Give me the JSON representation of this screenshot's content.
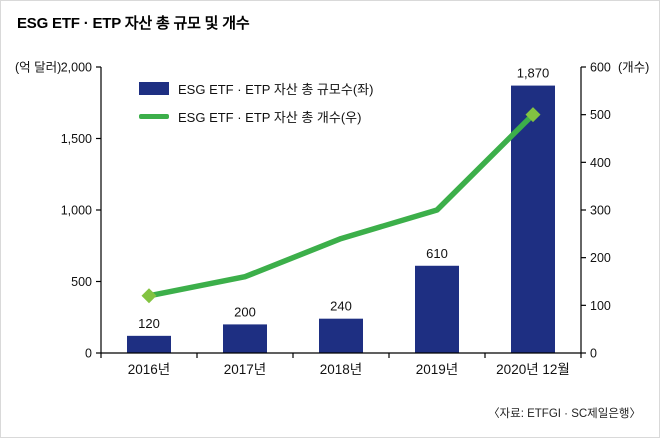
{
  "page": {
    "title": "ESG ETF · ETP 자산 총 규모 및 개수",
    "source_note": "〈자료: ETFGI · SC제일은행〉"
  },
  "legend": {
    "bars_label": "ESG ETF · ETP 자산 총 규모수(좌)",
    "line_label": "ESG ETF · ETP 자산 총 개수(우)"
  },
  "colors": {
    "bar": "#1E2F82",
    "line": "#3CAF4A",
    "marker": "#82C341",
    "axis": "#000000",
    "text": "#111111"
  },
  "chart_data": {
    "type": "bar+line",
    "categories": [
      "2016년",
      "2017년",
      "2018년",
      "2019년",
      "2020년 12월"
    ],
    "series": [
      {
        "name": "ESG ETF · ETP 자산 총 규모수(좌)",
        "type": "bar",
        "axis": "left",
        "values": [
          120,
          200,
          240,
          610,
          1870
        ],
        "labels": [
          "120",
          "200",
          "240",
          "610",
          "1,870"
        ]
      },
      {
        "name": "ESG ETF · ETP 자산 총 개수(우)",
        "type": "line",
        "axis": "right",
        "values": [
          120,
          160,
          240,
          300,
          500
        ],
        "markers_at": [
          0,
          4
        ]
      }
    ],
    "left_axis": {
      "unit": "(억 달러)",
      "min": 0,
      "max": 2000,
      "ticks": [
        0,
        500,
        1000,
        1500,
        2000
      ],
      "tick_labels": [
        "0",
        "500",
        "1,000",
        "1,500",
        "2,000"
      ]
    },
    "right_axis": {
      "unit": "(개수)",
      "min": 0,
      "max": 600,
      "ticks": [
        0,
        100,
        200,
        300,
        400,
        500,
        600
      ],
      "tick_labels": [
        "0",
        "100",
        "200",
        "300",
        "400",
        "500",
        "600"
      ]
    },
    "grid": false,
    "legend_position": "top-left-inside"
  }
}
